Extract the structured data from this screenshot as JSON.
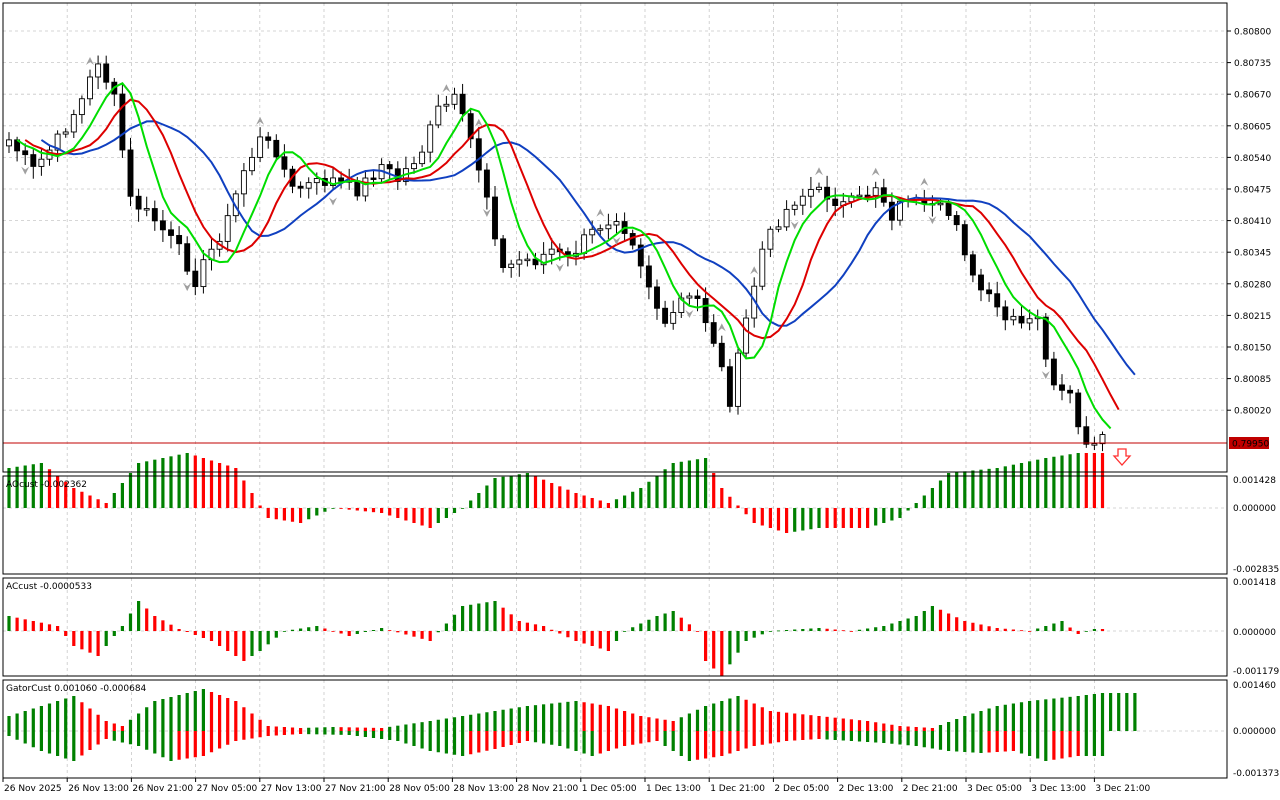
{
  "colors": {
    "frame": "#000000",
    "grid": "#c8c8c8",
    "ma_green": "#00dd00",
    "ma_red": "#dd0000",
    "ma_blue": "#1040c0",
    "bar_green": "#008000",
    "bar_red": "#ff0000",
    "price_line": "#c00000",
    "price_tag_bg": "#c00000",
    "price_tag_text": "#ffffff",
    "fractal": "#a0a0a0",
    "signal_arrow": "#ff3030"
  },
  "main": {
    "price_scale": [
      "0.80800",
      "0.80735",
      "0.80670",
      "0.80605",
      "0.80540",
      "0.80475",
      "0.80410",
      "0.80345",
      "0.80280",
      "0.80215",
      "0.80150",
      "0.80085",
      "0.80020"
    ],
    "current_price": "0.79950",
    "signal_icon": "down-arrow-icon"
  },
  "ao": {
    "label": "AOcust -0.002362",
    "scale": [
      "0.001428",
      "0.000000",
      "-0.002835"
    ]
  },
  "ac": {
    "label": "ACcust -0.0000533",
    "scale": [
      "0.001418",
      "0.000000",
      "-0.001179"
    ]
  },
  "gator": {
    "label": "GatorCust 0.001060 -0.000684",
    "scale": [
      "0.001460",
      "0.000000",
      "-0.001373"
    ]
  },
  "time_axis": [
    "26 Nov 2025",
    "26 Nov 13:00",
    "26 Nov 21:00",
    "27 Nov 05:00",
    "27 Nov 13:00",
    "27 Nov 21:00",
    "28 Nov 05:00",
    "28 Nov 13:00",
    "28 Nov 21:00",
    "1 Dec 05:00",
    "1 Dec 13:00",
    "1 Dec 21:00",
    "2 Dec 05:00",
    "2 Dec 13:00",
    "2 Dec 21:00",
    "3 Dec 05:00",
    "3 Dec 13:00",
    "3 Dec 21:00"
  ]
}
